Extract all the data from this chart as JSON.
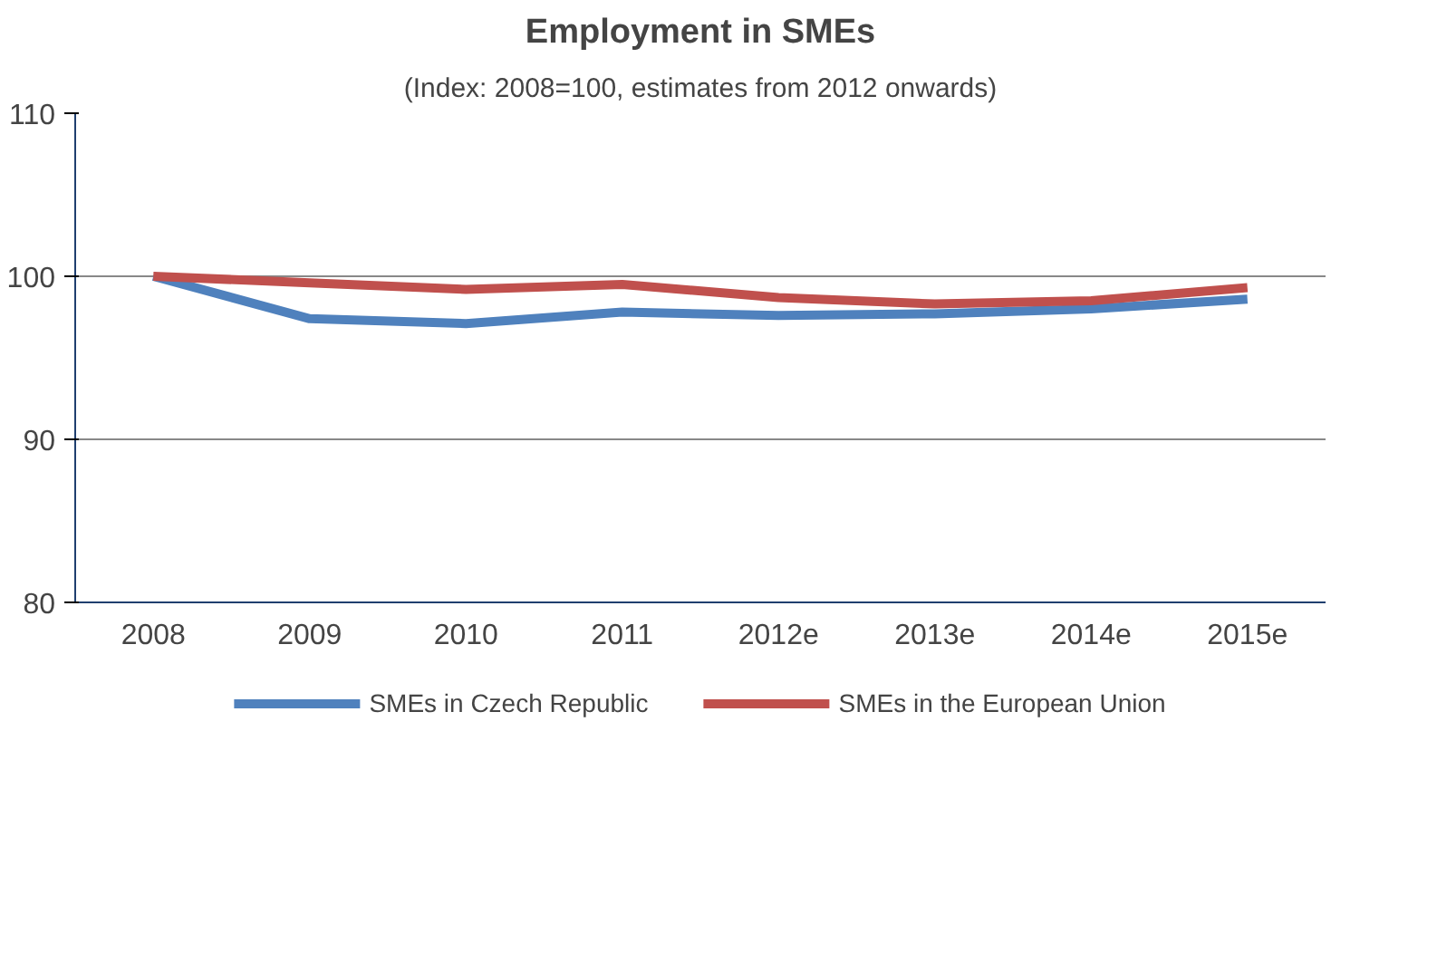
{
  "chart_data": {
    "type": "line",
    "title": "Employment in SMEs",
    "subtitle": "(Index: 2008=100, estimates from 2012 onwards)",
    "categories": [
      "2008",
      "2009",
      "2010",
      "2011",
      "2012e",
      "2013e",
      "2014e",
      "2015e"
    ],
    "series": [
      {
        "name": "SMEs in Czech Republic",
        "color": "#4f81bd",
        "values": [
          100,
          97.4,
          97.1,
          97.8,
          97.6,
          97.7,
          98.0,
          98.6
        ]
      },
      {
        "name": "SMEs in the European Union",
        "color": "#c0504d",
        "values": [
          100,
          99.6,
          99.2,
          99.5,
          98.7,
          98.3,
          98.5,
          99.3
        ]
      }
    ],
    "ylim": [
      80,
      110
    ],
    "yticks": [
      80,
      90,
      100,
      110
    ],
    "grid": "y",
    "legend": "bottom",
    "marker": "none",
    "line_style": "solid"
  }
}
